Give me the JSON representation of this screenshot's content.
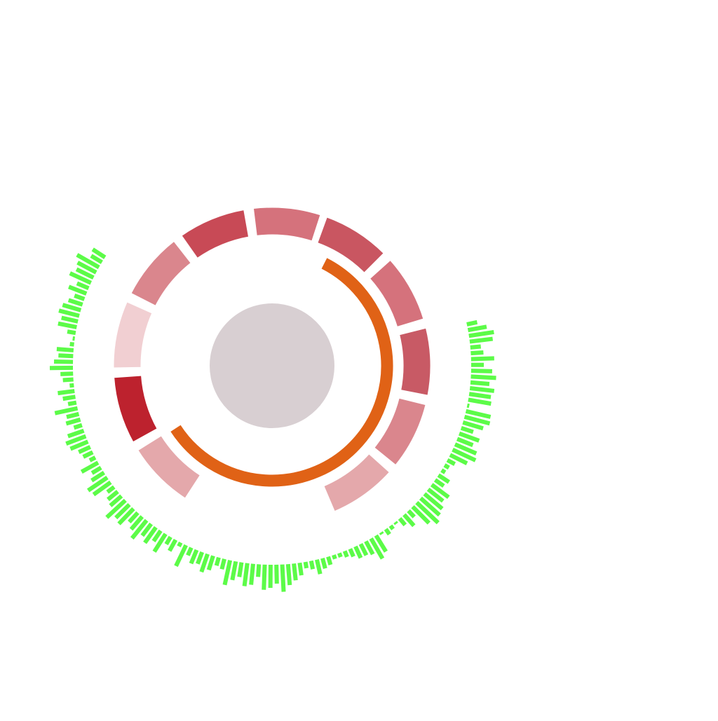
{
  "chart_data": {
    "type": "radial",
    "title": "",
    "center_disc": {
      "color": "#d8cfd2"
    },
    "segments": {
      "type": "donut-segments",
      "colors_note": "shades of red",
      "items": [
        {
          "start": 237,
          "end": 212,
          "color": "#e4a8ab"
        },
        {
          "start": 209,
          "end": 184,
          "color": "#bd222e"
        },
        {
          "start": 181,
          "end": 156,
          "color": "#f1cfd2"
        },
        {
          "start": 153,
          "end": 128,
          "color": "#da868d"
        },
        {
          "start": 125,
          "end": 100,
          "color": "#c84a56"
        },
        {
          "start": 97,
          "end": 72,
          "color": "#d5727c"
        },
        {
          "start": 70,
          "end": 45,
          "color": "#c95661"
        },
        {
          "start": 42,
          "end": 17,
          "color": "#d5727c"
        },
        {
          "start": 14,
          "end": -11,
          "color": "#c85a65"
        },
        {
          "start": -14,
          "end": -39,
          "color": "#da868d"
        },
        {
          "start": -42,
          "end": -67,
          "color": "#e4a8ab"
        }
      ]
    },
    "arc": {
      "start": 150,
      "end": 121,
      "end_ccw": -121,
      "from": 153,
      "to": -122,
      "color": "#e06216"
    },
    "bars": {
      "type": "radial-bar",
      "color": "#5cfb48",
      "from_angle": 83,
      "to_angle": -155,
      "values": [
        0.25,
        0.45,
        0.6,
        0.55,
        0.25,
        0.3,
        0.55,
        0.3,
        0.5,
        0.6,
        0.45,
        0.58,
        0.52,
        0.55,
        0.05,
        0.6,
        0.62,
        0.5,
        0.3,
        0.5,
        0.4,
        0.55,
        0.6,
        0.45,
        0.2,
        0.12,
        0.1,
        0.3,
        0.25,
        0.5,
        0.45,
        0.55,
        0.6,
        0.7,
        0.55,
        0.2,
        0.35,
        0.2,
        0.05,
        0.1,
        0.15,
        0.05,
        0.45,
        0.55,
        0.35,
        0.3,
        0.3,
        0.2,
        0.15,
        0.1,
        0.1,
        0.2,
        0.25,
        0.35,
        0.2,
        0.15,
        0.3,
        0.4,
        0.5,
        0.65,
        0.45,
        0.55,
        0.6,
        0.3,
        0.5,
        0.55,
        0.35,
        0.45,
        0.6,
        0.25,
        0.2,
        0.35,
        0.45,
        0.3,
        0.35,
        0.2,
        0.55,
        0.1,
        0.3,
        0.2,
        0.5,
        0.3,
        0.45,
        0.35,
        0.55,
        0.4,
        0.3,
        0.5,
        0.45,
        0.6,
        0.35,
        0.3,
        0.2,
        0.5,
        0.55,
        0.35,
        0.25,
        0.45,
        0.15,
        0.25,
        0.3,
        0.45,
        0.5,
        0.4,
        0.2,
        0.35,
        0.3,
        0.55,
        0.2,
        0.3,
        0.4,
        0.1,
        0.25,
        0.3,
        0.55,
        0.45,
        0.35,
        0.4,
        0.1,
        0.05,
        0.2,
        0.45,
        0.4,
        0.5,
        0.45,
        0.35,
        0.25,
        0.45,
        0.3,
        0.55,
        0.45,
        0.5,
        0.6,
        0.3,
        0.35
      ]
    }
  }
}
